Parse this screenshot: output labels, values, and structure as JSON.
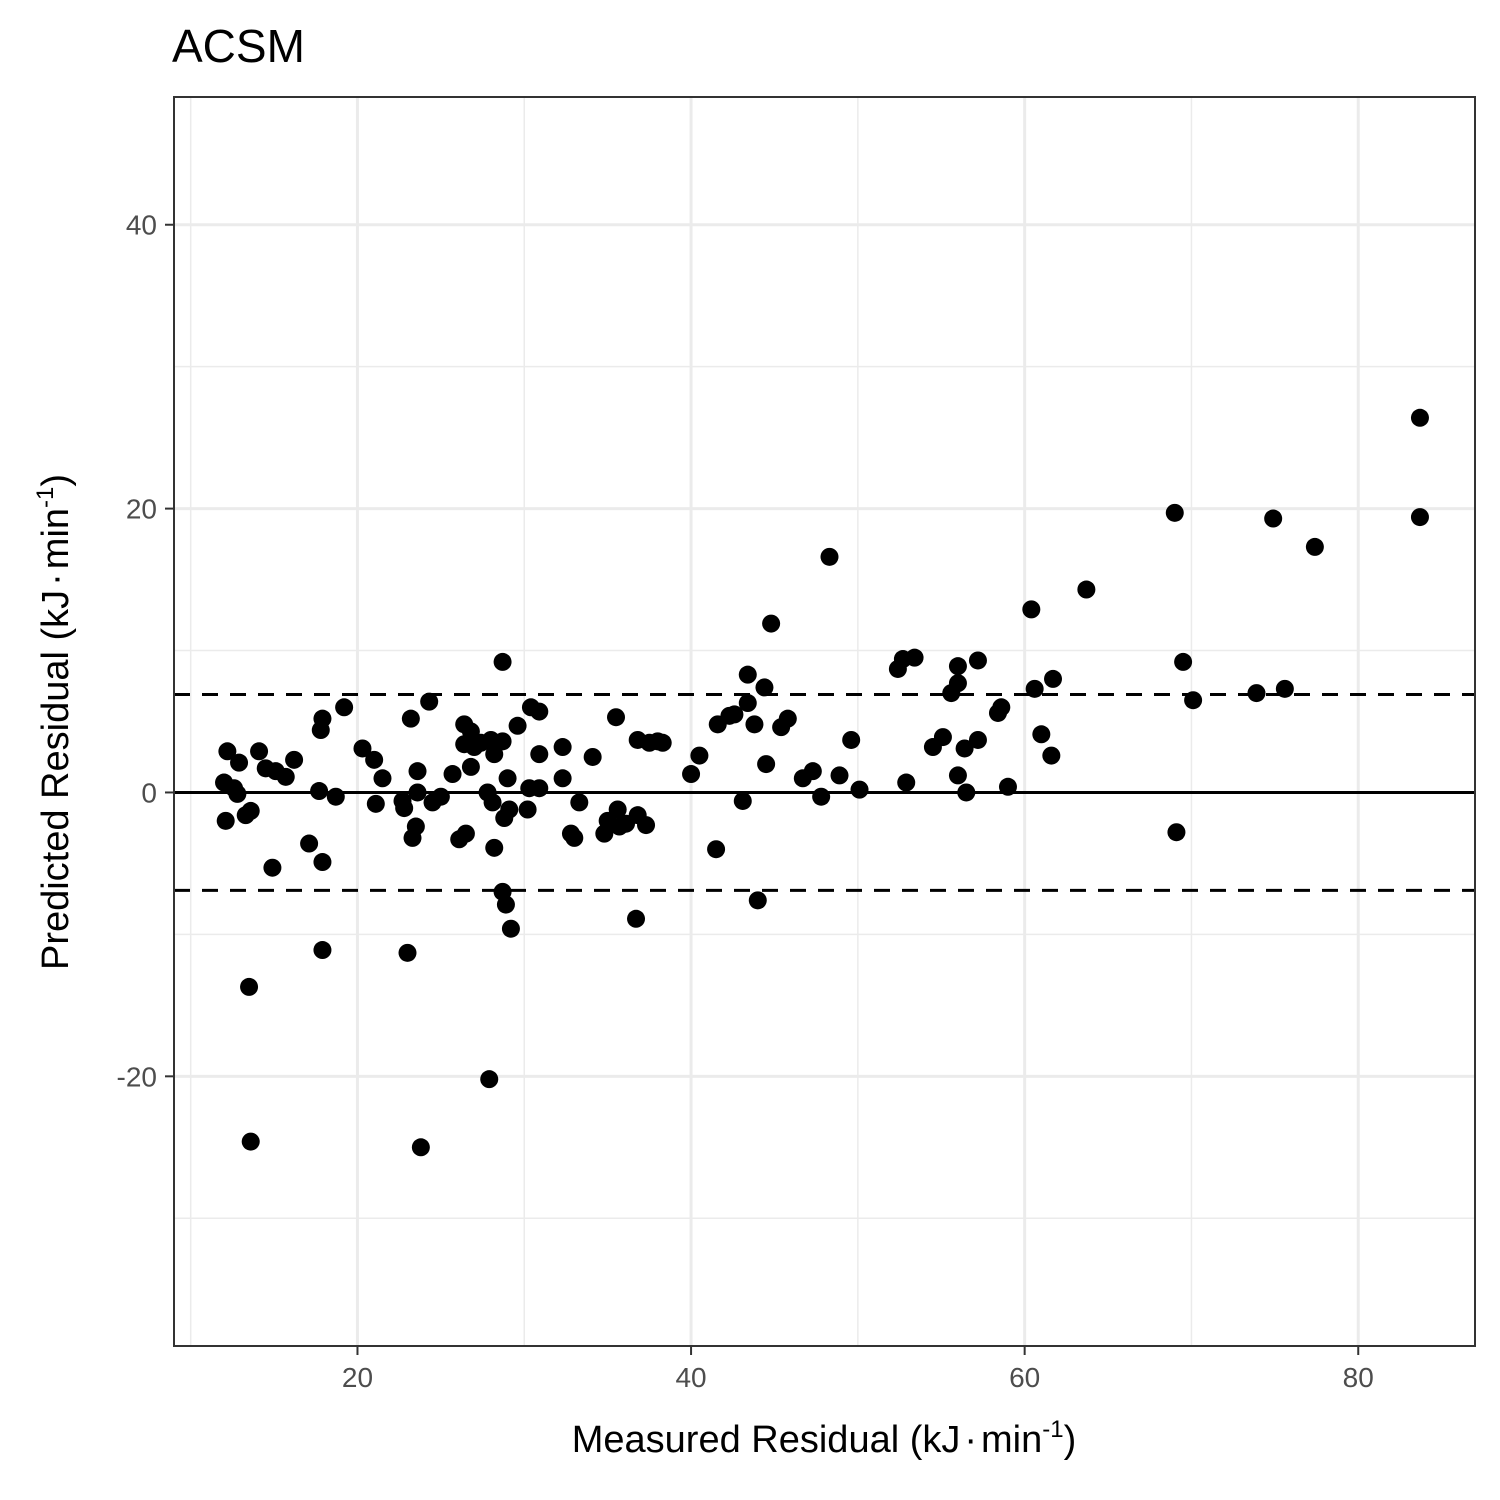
{
  "chart_data": {
    "type": "scatter",
    "title": "ACSM",
    "xlabel": "Measured Residual (kJ·min⁻¹)",
    "xlabel_parts": {
      "before": "Measured Residual (kJ",
      "dot": "·",
      "unit": "min",
      "sup": "-1",
      "after": ")"
    },
    "ylabel": "Predicted Residual (kJ·min⁻¹)",
    "ylabel_parts": {
      "before": "Predicted Residual (kJ",
      "dot": "·",
      "unit": "min",
      "sup": "-1",
      "after": ")"
    },
    "xlim": [
      9,
      87
    ],
    "ylim": [
      -39,
      49
    ],
    "x_ticks": [
      20,
      40,
      60,
      80
    ],
    "x_tick_labels": [
      "20",
      "40",
      "60",
      "80"
    ],
    "y_ticks": [
      -20,
      0,
      20,
      40
    ],
    "y_tick_labels": [
      "-20",
      "0",
      "20",
      "40"
    ],
    "x_minor_ticks": [
      10,
      30,
      50,
      70
    ],
    "y_minor_ticks": [
      -30,
      -10,
      10,
      30
    ],
    "grid": true,
    "legend": "none",
    "reference_lines": [
      {
        "y": 0,
        "style": "solid"
      },
      {
        "y": 6.9,
        "style": "dashed"
      },
      {
        "y": -6.9,
        "style": "dashed"
      }
    ],
    "point_color": "#000000",
    "points": [
      [
        12.0,
        0.7
      ],
      [
        12.2,
        2.9
      ],
      [
        12.1,
        -2.0
      ],
      [
        12.6,
        0.3
      ],
      [
        12.8,
        -0.1
      ],
      [
        12.9,
        2.1
      ],
      [
        13.3,
        -1.6
      ],
      [
        13.6,
        -1.3
      ],
      [
        13.5,
        -13.7
      ],
      [
        13.6,
        -24.6
      ],
      [
        14.1,
        2.9
      ],
      [
        14.5,
        1.7
      ],
      [
        14.9,
        -5.3
      ],
      [
        15.1,
        1.5
      ],
      [
        15.7,
        1.1
      ],
      [
        16.2,
        2.3
      ],
      [
        17.1,
        -3.6
      ],
      [
        17.7,
        0.1
      ],
      [
        17.8,
        4.4
      ],
      [
        17.9,
        5.2
      ],
      [
        17.9,
        -4.9
      ],
      [
        17.9,
        -11.1
      ],
      [
        18.7,
        -0.3
      ],
      [
        19.2,
        6.0
      ],
      [
        20.3,
        3.1
      ],
      [
        21.0,
        2.3
      ],
      [
        21.1,
        -0.8
      ],
      [
        21.5,
        1.0
      ],
      [
        22.7,
        -0.6
      ],
      [
        22.8,
        -1.1
      ],
      [
        23.0,
        -11.3
      ],
      [
        23.2,
        5.2
      ],
      [
        23.3,
        -3.2
      ],
      [
        23.5,
        -2.4
      ],
      [
        23.6,
        0.0
      ],
      [
        23.6,
        1.5
      ],
      [
        23.8,
        -25.0
      ],
      [
        24.3,
        6.4
      ],
      [
        24.5,
        -0.7
      ],
      [
        25.0,
        -0.3
      ],
      [
        25.7,
        1.3
      ],
      [
        26.1,
        -3.3
      ],
      [
        26.4,
        3.4
      ],
      [
        26.4,
        4.8
      ],
      [
        26.5,
        -2.9
      ],
      [
        26.8,
        1.8
      ],
      [
        26.8,
        4.3
      ],
      [
        27.0,
        3.2
      ],
      [
        27.4,
        3.5
      ],
      [
        27.8,
        0.0
      ],
      [
        27.9,
        -20.2
      ],
      [
        28.0,
        3.7
      ],
      [
        28.1,
        -0.7
      ],
      [
        28.2,
        2.7
      ],
      [
        28.2,
        -3.9
      ],
      [
        28.7,
        3.6
      ],
      [
        28.7,
        9.2
      ],
      [
        28.7,
        -7.0
      ],
      [
        28.8,
        -1.8
      ],
      [
        28.9,
        -7.9
      ],
      [
        29.0,
        1.0
      ],
      [
        29.1,
        -1.2
      ],
      [
        29.2,
        -9.6
      ],
      [
        29.6,
        4.7
      ],
      [
        30.2,
        -1.2
      ],
      [
        30.3,
        0.3
      ],
      [
        30.4,
        6.0
      ],
      [
        30.9,
        0.3
      ],
      [
        30.9,
        2.7
      ],
      [
        30.9,
        5.7
      ],
      [
        32.3,
        3.2
      ],
      [
        32.3,
        1.0
      ],
      [
        32.8,
        -2.9
      ],
      [
        33.0,
        -3.2
      ],
      [
        33.3,
        -0.7
      ],
      [
        34.1,
        2.5
      ],
      [
        34.8,
        -2.9
      ],
      [
        35.0,
        -2.0
      ],
      [
        35.5,
        5.3
      ],
      [
        35.6,
        -1.2
      ],
      [
        35.7,
        -2.4
      ],
      [
        36.1,
        -2.2
      ],
      [
        36.7,
        -8.9
      ],
      [
        36.8,
        -1.6
      ],
      [
        36.8,
        3.7
      ],
      [
        37.3,
        -2.3
      ],
      [
        37.5,
        3.5
      ],
      [
        38.0,
        3.6
      ],
      [
        38.3,
        3.5
      ],
      [
        40.0,
        1.3
      ],
      [
        40.5,
        2.6
      ],
      [
        41.5,
        -4.0
      ],
      [
        41.6,
        4.8
      ],
      [
        42.3,
        5.4
      ],
      [
        42.6,
        5.5
      ],
      [
        43.1,
        -0.6
      ],
      [
        43.4,
        6.3
      ],
      [
        43.4,
        8.3
      ],
      [
        43.8,
        4.8
      ],
      [
        44.0,
        -7.6
      ],
      [
        44.4,
        7.4
      ],
      [
        44.5,
        2.0
      ],
      [
        44.8,
        11.9
      ],
      [
        45.4,
        4.6
      ],
      [
        45.8,
        5.2
      ],
      [
        46.7,
        1.0
      ],
      [
        47.3,
        1.5
      ],
      [
        47.8,
        -0.3
      ],
      [
        48.3,
        16.6
      ],
      [
        48.9,
        1.2
      ],
      [
        49.6,
        3.7
      ],
      [
        50.1,
        0.2
      ],
      [
        52.4,
        8.7
      ],
      [
        52.7,
        9.4
      ],
      [
        52.9,
        0.7
      ],
      [
        53.4,
        9.5
      ],
      [
        54.5,
        3.2
      ],
      [
        55.1,
        3.9
      ],
      [
        55.6,
        7.0
      ],
      [
        56.0,
        7.7
      ],
      [
        56.0,
        8.9
      ],
      [
        56.0,
        1.2
      ],
      [
        56.4,
        3.1
      ],
      [
        56.5,
        0.0
      ],
      [
        57.2,
        9.3
      ],
      [
        57.2,
        3.7
      ],
      [
        58.4,
        5.6
      ],
      [
        58.6,
        6.0
      ],
      [
        59.0,
        0.4
      ],
      [
        60.4,
        12.9
      ],
      [
        60.6,
        7.3
      ],
      [
        61.0,
        4.1
      ],
      [
        61.6,
        2.6
      ],
      [
        61.7,
        8.0
      ],
      [
        63.7,
        14.3
      ],
      [
        69.0,
        19.7
      ],
      [
        69.1,
        -2.8
      ],
      [
        69.5,
        9.2
      ],
      [
        70.1,
        6.5
      ],
      [
        73.9,
        7.0
      ],
      [
        74.9,
        19.3
      ],
      [
        75.6,
        7.3
      ],
      [
        77.4,
        17.3
      ],
      [
        83.7,
        26.4
      ],
      [
        83.7,
        19.4
      ]
    ]
  }
}
